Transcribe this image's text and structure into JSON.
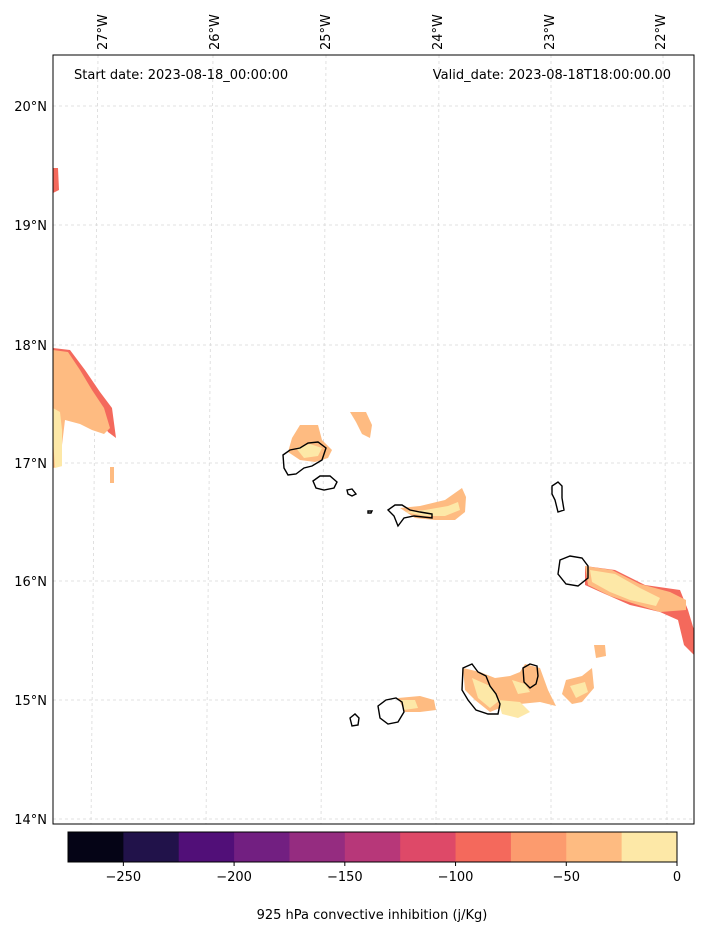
{
  "header": {
    "start_date": "Start date: 2023-08-18_00:00:00",
    "valid_date": "Valid_date: 2023-08-18T18:00:00.00"
  },
  "longitude_labels": [
    "27°W",
    "26°W",
    "25°W",
    "24°W",
    "23°W",
    "22°W"
  ],
  "latitude_labels": [
    "20°N",
    "19°N",
    "18°N",
    "17°N",
    "16°N",
    "15°N",
    "14°N"
  ],
  "colorbar": {
    "title": "925 hPa convective inhibition (j/Kg)",
    "tick_labels": [
      "−250",
      "−200",
      "−150",
      "−100",
      "−50",
      "0"
    ],
    "levels": [
      -275,
      -250,
      -225,
      -200,
      -175,
      -150,
      -125,
      -100,
      -75,
      -50,
      -25,
      0
    ],
    "colors": [
      "#050416",
      "#21124a",
      "#510f78",
      "#721f81",
      "#952c80",
      "#b73779",
      "#de4968",
      "#f4695c",
      "#fc9b6e",
      "#febb81",
      "#fde8a7"
    ]
  },
  "colors": {
    "coastline": "#000000",
    "gridline": "#d9d9d9",
    "frame": "#000000"
  }
}
